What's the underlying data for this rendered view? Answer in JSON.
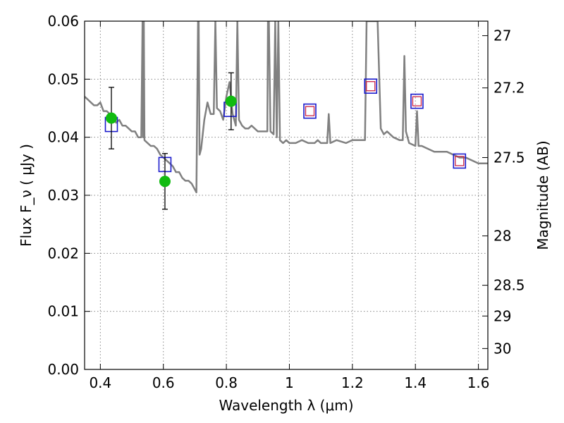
{
  "chart_data": {
    "type": "scatter",
    "title": "",
    "xlabel": "Wavelength  λ (μm)",
    "ylabel": "Flux  F_ν  ( μJy )",
    "y2label": "Magnitude (AB)",
    "xlim": [
      0.35,
      1.63
    ],
    "ylim": [
      0.0,
      0.06
    ],
    "grid": true,
    "x_ticks": [
      "0.4",
      "0.6",
      "0.8",
      "1",
      "1.2",
      "1.4",
      "1.6"
    ],
    "x_tick_values": [
      0.4,
      0.6,
      0.8,
      1.0,
      1.2,
      1.4,
      1.6
    ],
    "y_ticks": [
      "0.00",
      "0.01",
      "0.02",
      "0.03",
      "0.04",
      "0.05",
      "0.06"
    ],
    "y_tick_values": [
      0.0,
      0.01,
      0.02,
      0.03,
      0.04,
      0.05,
      0.06
    ],
    "mag_ticks": [
      "27",
      "27.2",
      "27.5",
      "28",
      "28.5",
      "29",
      "30"
    ],
    "mag_tick_flux": [
      0.0575,
      0.0485,
      0.0365,
      0.023,
      0.0145,
      0.0092,
      0.0036
    ],
    "colors": {
      "model": "#808080",
      "observed": "#11bb11",
      "model_box": "#1a1acc",
      "inner_box": "#cc2244",
      "errorbar": "#000000",
      "grid": "#888888"
    },
    "series": [
      {
        "kind": "spectrum",
        "x": [
          0.35,
          0.36,
          0.37,
          0.38,
          0.39,
          0.4,
          0.41,
          0.42,
          0.43,
          0.44,
          0.45,
          0.46,
          0.47,
          0.48,
          0.49,
          0.5,
          0.51,
          0.52,
          0.53,
          0.534,
          0.536,
          0.538,
          0.54,
          0.55,
          0.56,
          0.57,
          0.58,
          0.59,
          0.6,
          0.61,
          0.62,
          0.63,
          0.64,
          0.65,
          0.66,
          0.67,
          0.68,
          0.69,
          0.7,
          0.705,
          0.71,
          0.712,
          0.715,
          0.72,
          0.73,
          0.74,
          0.75,
          0.76,
          0.765,
          0.77,
          0.78,
          0.79,
          0.8,
          0.81,
          0.82,
          0.83,
          0.835,
          0.84,
          0.85,
          0.86,
          0.87,
          0.88,
          0.89,
          0.9,
          0.91,
          0.92,
          0.93,
          0.932,
          0.935,
          0.94,
          0.95,
          0.955,
          0.96,
          0.965,
          0.97,
          0.98,
          0.99,
          1.0,
          1.02,
          1.04,
          1.06,
          1.08,
          1.09,
          1.1,
          1.12,
          1.125,
          1.13,
          1.15,
          1.18,
          1.2,
          1.21,
          1.22,
          1.24,
          1.245,
          1.25,
          1.27,
          1.28,
          1.29,
          1.3,
          1.31,
          1.33,
          1.35,
          1.36,
          1.365,
          1.37,
          1.38,
          1.4,
          1.405,
          1.41,
          1.42,
          1.44,
          1.46,
          1.48,
          1.5,
          1.52,
          1.54,
          1.56,
          1.58,
          1.6,
          1.63
        ],
        "y": [
          0.047,
          0.0465,
          0.046,
          0.0455,
          0.0455,
          0.046,
          0.0445,
          0.0445,
          0.044,
          0.0435,
          0.0425,
          0.043,
          0.042,
          0.042,
          0.0415,
          0.041,
          0.041,
          0.04,
          0.04,
          0.06,
          0.04,
          0.06,
          0.0395,
          0.039,
          0.0385,
          0.0385,
          0.038,
          0.037,
          0.0365,
          0.036,
          0.0355,
          0.035,
          0.034,
          0.034,
          0.033,
          0.0325,
          0.0325,
          0.032,
          0.031,
          0.0305,
          0.06,
          0.06,
          0.037,
          0.038,
          0.043,
          0.046,
          0.044,
          0.044,
          0.06,
          0.045,
          0.0445,
          0.043,
          0.047,
          0.0495,
          0.044,
          0.042,
          0.06,
          0.043,
          0.042,
          0.0415,
          0.0415,
          0.042,
          0.0415,
          0.041,
          0.041,
          0.041,
          0.041,
          0.06,
          0.06,
          0.041,
          0.0405,
          0.06,
          0.04,
          0.06,
          0.0395,
          0.039,
          0.0395,
          0.039,
          0.039,
          0.0395,
          0.039,
          0.039,
          0.0395,
          0.039,
          0.039,
          0.044,
          0.039,
          0.0395,
          0.039,
          0.0395,
          0.0395,
          0.0395,
          0.0395,
          0.06,
          0.06,
          0.06,
          0.06,
          0.0415,
          0.0405,
          0.041,
          0.04,
          0.0395,
          0.0395,
          0.054,
          0.041,
          0.039,
          0.0385,
          0.0445,
          0.0385,
          0.0385,
          0.038,
          0.0375,
          0.0375,
          0.0375,
          0.037,
          0.0365,
          0.0365,
          0.036,
          0.0355,
          0.0355
        ]
      },
      {
        "kind": "model_photometry",
        "x": [
          0.435,
          0.605,
          0.812,
          1.065,
          1.258,
          1.405,
          1.54
        ],
        "y": [
          0.0422,
          0.0353,
          0.0448,
          0.0445,
          0.0488,
          0.0462,
          0.0359
        ]
      },
      {
        "kind": "model_photometry_inner",
        "x": [
          1.065,
          1.258,
          1.405,
          1.54
        ],
        "y": [
          0.0445,
          0.0488,
          0.0462,
          0.0359
        ]
      },
      {
        "kind": "observed",
        "x": [
          0.435,
          0.605,
          0.815
        ],
        "y": [
          0.0433,
          0.0324,
          0.0462
        ],
        "err": [
          0.0053,
          0.0048,
          0.0049
        ]
      }
    ]
  }
}
